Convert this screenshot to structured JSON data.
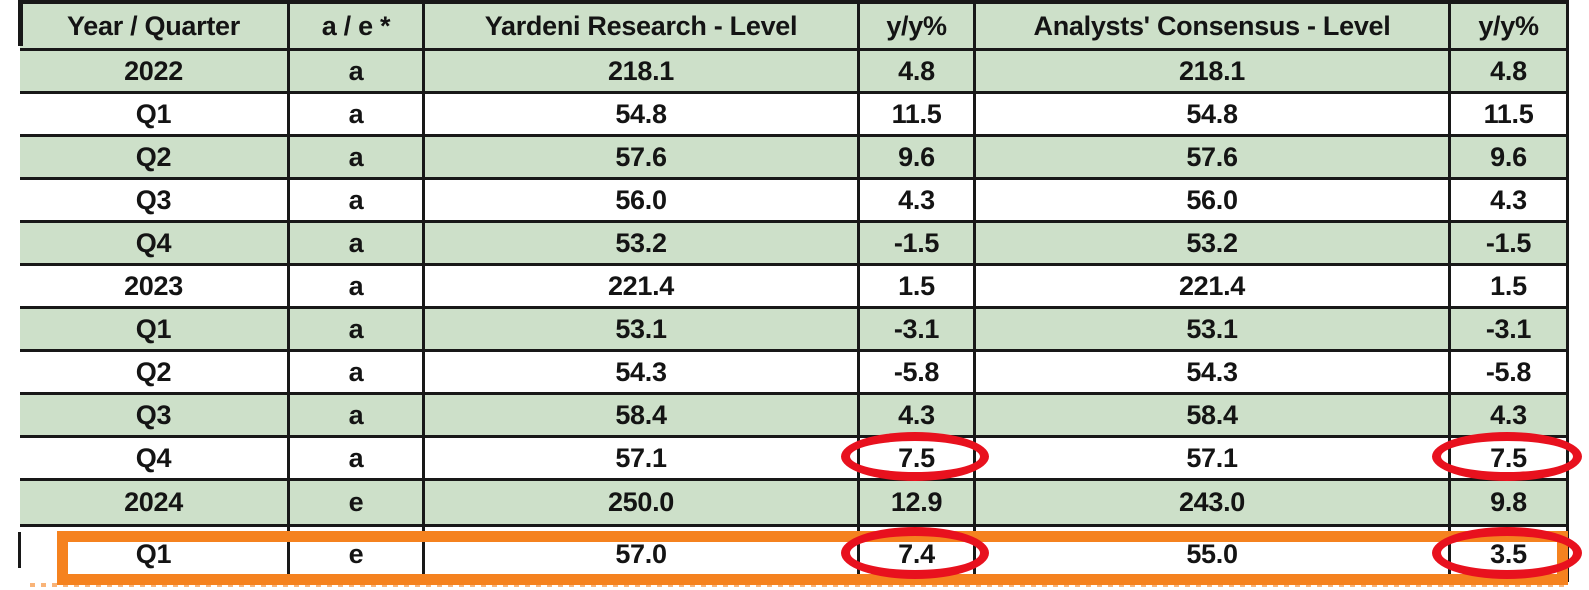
{
  "chart_data": {
    "type": "table",
    "columns": [
      "Year / Quarter",
      "a / e *",
      "Yardeni Research - Level",
      "y/y%",
      "Analysts' Consensus - Level",
      "y/y%"
    ],
    "rows": [
      {
        "cells": [
          "2022",
          "a",
          "218.1",
          "4.8",
          "218.1",
          "4.8"
        ],
        "shade": "green"
      },
      {
        "cells": [
          "Q1",
          "a",
          "54.8",
          "11.5",
          "54.8",
          "11.5"
        ],
        "shade": "white"
      },
      {
        "cells": [
          "Q2",
          "a",
          "57.6",
          "9.6",
          "57.6",
          "9.6"
        ],
        "shade": "green"
      },
      {
        "cells": [
          "Q3",
          "a",
          "56.0",
          "4.3",
          "56.0",
          "4.3"
        ],
        "shade": "white"
      },
      {
        "cells": [
          "Q4",
          "a",
          "53.2",
          "-1.5",
          "53.2",
          "-1.5"
        ],
        "shade": "green"
      },
      {
        "cells": [
          "2023",
          "a",
          "221.4",
          "1.5",
          "221.4",
          "1.5"
        ],
        "shade": "white"
      },
      {
        "cells": [
          "Q1",
          "a",
          "53.1",
          "-3.1",
          "53.1",
          "-3.1"
        ],
        "shade": "green"
      },
      {
        "cells": [
          "Q2",
          "a",
          "54.3",
          "-5.8",
          "54.3",
          "-5.8"
        ],
        "shade": "white"
      },
      {
        "cells": [
          "Q3",
          "a",
          "58.4",
          "4.3",
          "58.4",
          "4.3"
        ],
        "shade": "green"
      },
      {
        "cells": [
          "Q4",
          "a",
          "57.1",
          "7.5",
          "57.1",
          "7.5"
        ],
        "shade": "white",
        "circled_cols": [
          3,
          5
        ]
      },
      {
        "cells": [
          "2024",
          "e",
          "250.0",
          "12.9",
          "243.0",
          "9.8"
        ],
        "shade": "green"
      },
      {
        "cells": [
          "Q1",
          "e",
          "57.0",
          "7.4",
          "55.0",
          "3.5"
        ],
        "shade": "white",
        "circled_cols": [
          3,
          5
        ],
        "boxed": true
      }
    ],
    "layout_hints": {
      "row_banding": "alternating green and white",
      "all_text_bold_centered": true
    }
  },
  "annotations": {
    "red_circled_values": [
      "7.5",
      "7.5",
      "7.4",
      "3.5"
    ],
    "orange_boxed_row": "Q1 (2024, e)",
    "circle_color": "#e8111e",
    "box_color": "#f5821f"
  },
  "colors": {
    "shade_green": "#cde0c9",
    "shade_white": "#ffffff",
    "grid_line": "#181818",
    "text": "#141414"
  }
}
